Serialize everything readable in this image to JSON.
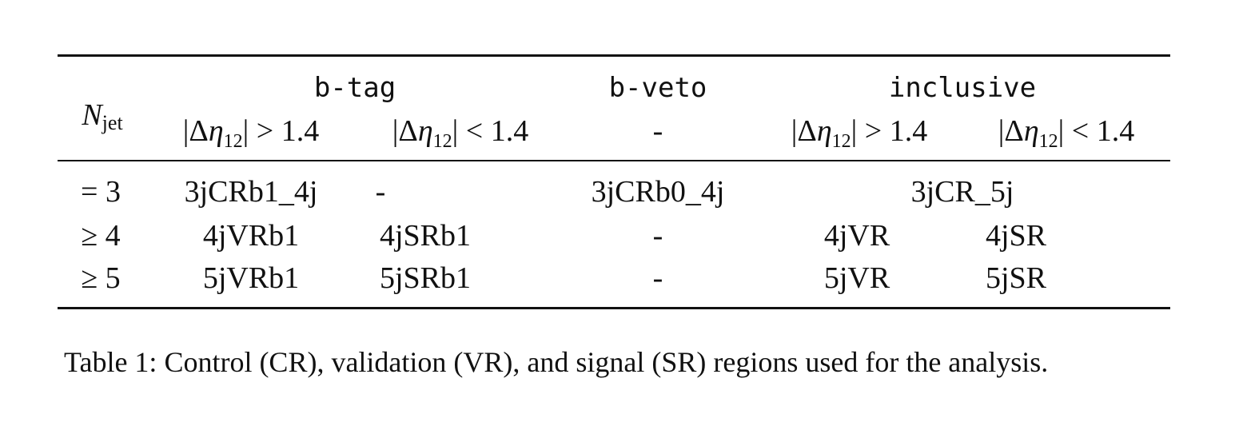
{
  "table": {
    "row_header": {
      "symbol": "N",
      "subscript": "jet"
    },
    "groups": {
      "btag": "b-tag",
      "bveto": "b-veto",
      "inclusive": "inclusive"
    },
    "subheaders": {
      "btag_gt": {
        "prefix": "|Δ",
        "eta": "η",
        "sub": "12",
        "suffix": "| > 1.4"
      },
      "btag_lt": {
        "prefix": "|Δ",
        "eta": "η",
        "sub": "12",
        "suffix": "| < 1.4"
      },
      "bveto": "-",
      "incl_gt": {
        "prefix": "|Δ",
        "eta": "η",
        "sub": "12",
        "suffix": "| > 1.4"
      },
      "incl_lt": {
        "prefix": "|Δ",
        "eta": "η",
        "sub": "12",
        "suffix": "| < 1.4"
      }
    },
    "rows": [
      {
        "njet": "= 3",
        "btag_gt": "3jCRb1_4j",
        "btag_lt": "-",
        "bveto": "3jCRb0_4j",
        "inclusive_span": "3jCR_5j"
      },
      {
        "njet": "≥ 4",
        "btag_gt": "4jVRb1",
        "btag_lt": "4jSRb1",
        "bveto": "-",
        "incl_gt": "4jVR",
        "incl_lt": "4jSR"
      },
      {
        "njet": "≥ 5",
        "btag_gt": "5jVRb1",
        "btag_lt": "5jSRb1",
        "bveto": "-",
        "incl_gt": "5jVR",
        "incl_lt": "5jSR"
      }
    ]
  },
  "caption": "Table 1: Control (CR), validation (VR), and signal (SR) regions used for the analysis."
}
